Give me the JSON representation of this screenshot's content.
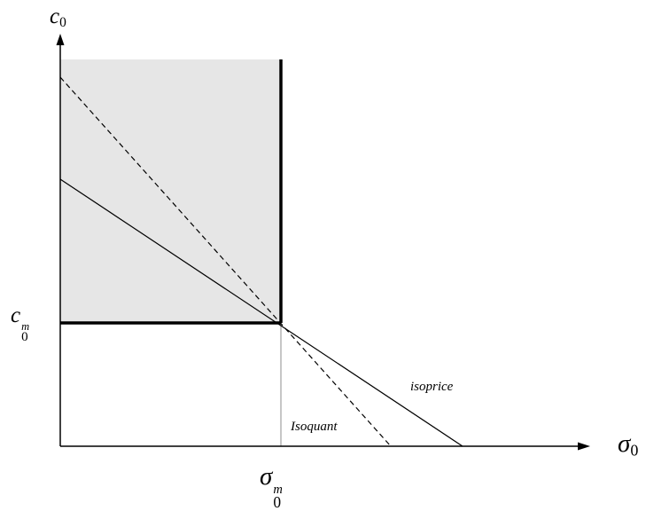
{
  "axes": {
    "y_label": {
      "symbol": "c",
      "subscript": "0"
    },
    "x_label": {
      "symbol": "σ",
      "subscript": "0"
    }
  },
  "ticks": {
    "c0m": {
      "symbol": "c",
      "subscript": "0",
      "superscript": "m"
    },
    "sigma0m": {
      "symbol": "σ",
      "subscript": "0",
      "superscript": "m"
    }
  },
  "curves": {
    "isoprice_label": "isoprice",
    "isoquant_label": "Isoquant"
  },
  "colors": {
    "shaded_region": "#e6e6e6",
    "ink": "#000000",
    "reference_line": "#b4b4b4"
  }
}
